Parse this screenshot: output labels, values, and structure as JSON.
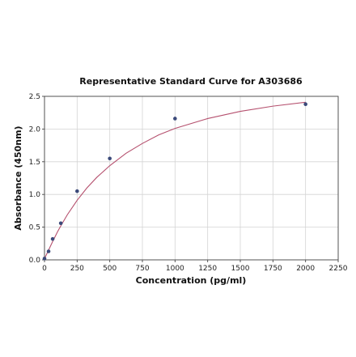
{
  "chart_data": {
    "type": "scatter",
    "title": "Representative Standard Curve for A303686",
    "xlabel": "Concentration (pg/ml)",
    "ylabel": "Absorbance (450nm)",
    "xlim": [
      0,
      2250
    ],
    "ylim": [
      0,
      2.5
    ],
    "xticks": [
      0,
      250,
      500,
      750,
      1000,
      1250,
      1500,
      1750,
      2000,
      2250
    ],
    "yticks": [
      0.0,
      0.5,
      1.0,
      1.5,
      2.0,
      2.5
    ],
    "grid": true,
    "legend": "none",
    "colors": {
      "points": "#3b4a7a",
      "curve": "#b5506e"
    },
    "series": [
      {
        "kind": "points",
        "x": [
          0,
          31.25,
          62.5,
          125,
          250,
          500,
          1000,
          2000
        ],
        "y": [
          0.02,
          0.13,
          0.32,
          0.56,
          1.05,
          1.55,
          2.16,
          2.38
        ]
      }
    ],
    "fit": {
      "kind": "curve",
      "model": "hyperbolic",
      "x": [
        0,
        15,
        31.25,
        62.5,
        100,
        125,
        175,
        250,
        325,
        400,
        500,
        625,
        750,
        875,
        1000,
        1250,
        1500,
        1750,
        2000
      ],
      "y": [
        0.02,
        0.08,
        0.15,
        0.28,
        0.43,
        0.52,
        0.69,
        0.91,
        1.1,
        1.26,
        1.44,
        1.63,
        1.78,
        1.91,
        2.01,
        2.16,
        2.27,
        2.35,
        2.41
      ]
    }
  }
}
